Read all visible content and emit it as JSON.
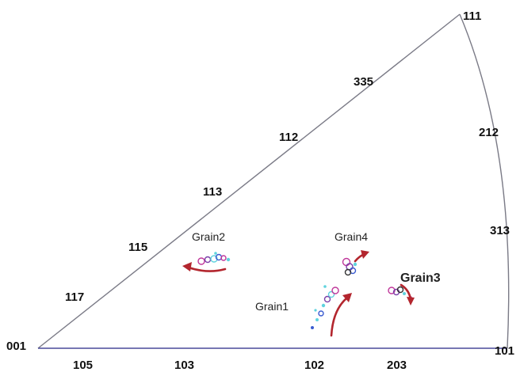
{
  "poles": [
    {
      "id": "001",
      "label": "001"
    },
    {
      "id": "111",
      "label": "111"
    },
    {
      "id": "101",
      "label": "101"
    },
    {
      "id": "335",
      "label": "335"
    },
    {
      "id": "112",
      "label": "112"
    },
    {
      "id": "113",
      "label": "113"
    },
    {
      "id": "115",
      "label": "115"
    },
    {
      "id": "117",
      "label": "117"
    },
    {
      "id": "212",
      "label": "212"
    },
    {
      "id": "313",
      "label": "313"
    },
    {
      "id": "105",
      "label": "105"
    },
    {
      "id": "103",
      "label": "103"
    },
    {
      "id": "102",
      "label": "102"
    },
    {
      "id": "203",
      "label": "203"
    }
  ],
  "grains": [
    {
      "id": "grain1",
      "label": "Grain1"
    },
    {
      "id": "grain2",
      "label": "Grain2"
    },
    {
      "id": "grain3",
      "label": "Grain3"
    },
    {
      "id": "grain4",
      "label": "Grain4"
    }
  ],
  "colors": {
    "arrow": "#b3262e",
    "edge": "#7a7a86",
    "edge_bottom": "#4a4a9a",
    "marker_magenta": "#c0369a",
    "marker_cyan": "#5fd3de",
    "marker_blue": "#3a5bd0",
    "marker_purple": "#7a3fa8",
    "marker_dark": "#333333"
  }
}
